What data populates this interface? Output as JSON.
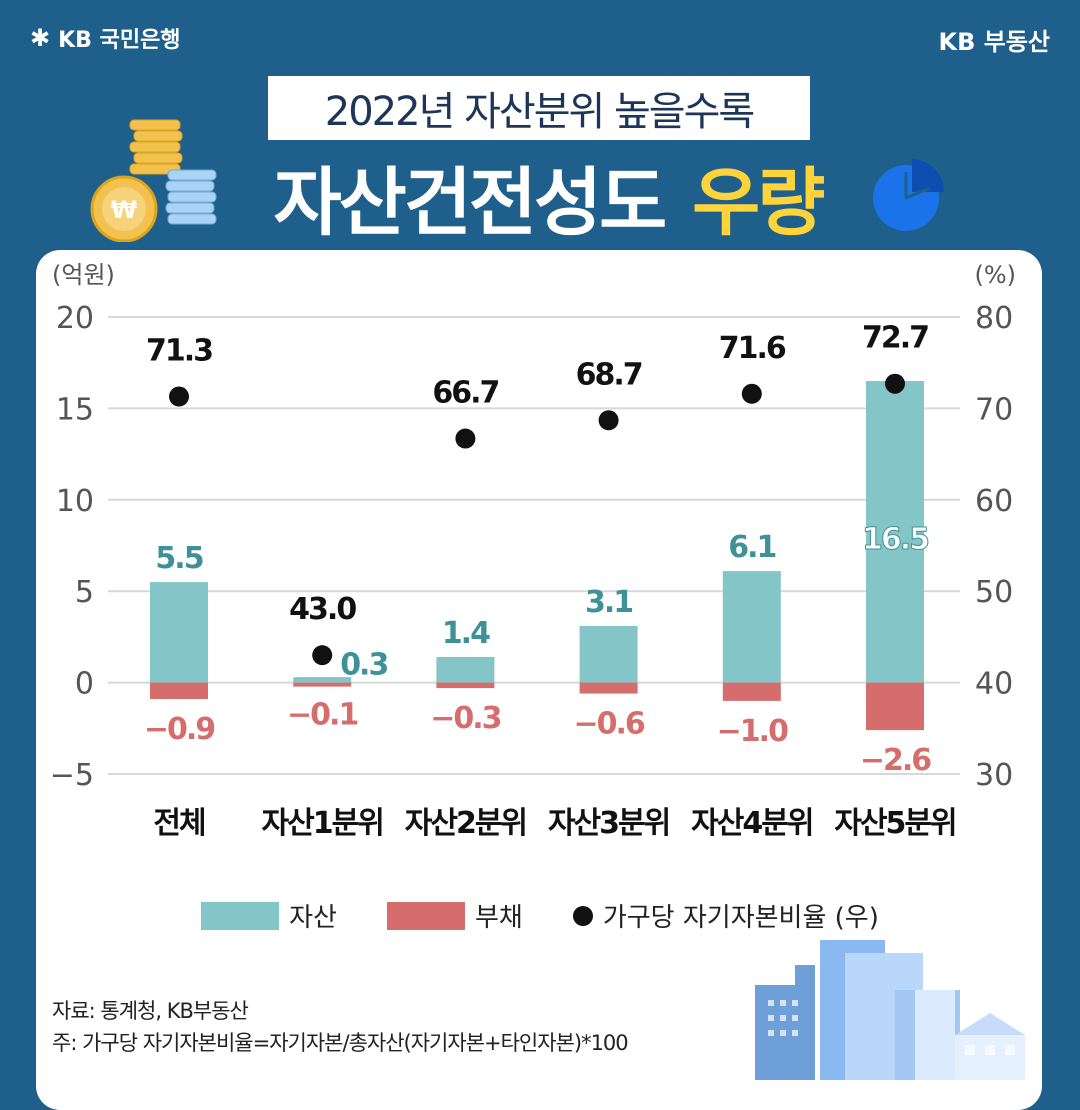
{
  "header": {
    "brand_left": "KB 국민은행",
    "brand_right": "KB 부동산",
    "subtitle": "2022년 자산분위 높을수록",
    "headline_main": "자산건전성도",
    "headline_highlight": "우량"
  },
  "chart_data": {
    "type": "bar",
    "categories": [
      "전체",
      "자산1분위",
      "자산2분위",
      "자산3분위",
      "자산4분위",
      "자산5분위"
    ],
    "left_axis": {
      "unit": "(억원)",
      "ylim": [
        -5,
        20
      ],
      "ticks": [
        -5,
        0,
        5,
        10,
        15,
        20
      ]
    },
    "right_axis": {
      "unit": "(%)",
      "ylim": [
        30,
        80
      ],
      "ticks": [
        30,
        40,
        50,
        60,
        70,
        80
      ]
    },
    "series": [
      {
        "name": "자산",
        "axis": "left",
        "kind": "bar",
        "color": "#84c6c8",
        "values": [
          5.5,
          0.3,
          1.4,
          3.1,
          6.1,
          16.5
        ],
        "labels": [
          "5.5",
          "0.3",
          "1.4",
          "3.1",
          "6.1",
          "16.5"
        ]
      },
      {
        "name": "부채",
        "axis": "left",
        "kind": "bar",
        "color": "#d66d6d",
        "values": [
          -0.9,
          -0.1,
          -0.3,
          -0.6,
          -1.0,
          -2.6
        ],
        "labels": [
          "−0.9",
          "−0.1",
          "−0.3",
          "−0.6",
          "−1.0",
          "−2.6"
        ]
      },
      {
        "name": "가구당 자기자본비율 (우)",
        "axis": "right",
        "kind": "scatter",
        "color": "#111111",
        "values": [
          71.3,
          43.0,
          66.7,
          68.7,
          71.6,
          72.7
        ],
        "labels": [
          "71.3",
          "43.0",
          "66.7",
          "68.7",
          "71.6",
          "72.7"
        ]
      }
    ],
    "grid": true
  },
  "legend": [
    {
      "label": "자산",
      "kind": "bar",
      "color": "#84c6c8"
    },
    {
      "label": "부채",
      "kind": "bar",
      "color": "#d66d6d"
    },
    {
      "label": "가구당 자기자본비율 (우)",
      "kind": "dot",
      "color": "#111111"
    }
  ],
  "footnotes": {
    "source": "자료: 통계청, KB부동산",
    "note": "주: 가구당 자기자본비율=자기자본/총자산(자기자본+타인자본)*100"
  },
  "decorations": {
    "coins_icon": "coin-stack-icon",
    "won_symbol": "₩",
    "pie_icon": "pie-chart-icon",
    "buildings_icon": "city-buildings-icon"
  }
}
